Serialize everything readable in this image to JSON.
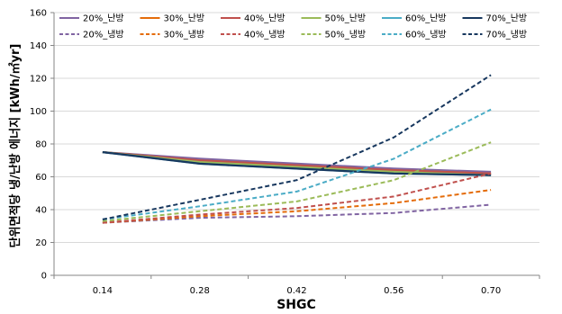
{
  "chart_data": {
    "type": "line",
    "xlabel": "SHGC",
    "ylabel": "단위면적당 냉/난방 에너지 [kWh/㎡yr]",
    "x": [
      "0.14",
      "0.28",
      "0.42",
      "0.56",
      "0.70"
    ],
    "ylim": [
      0,
      160
    ],
    "yticks": [
      0,
      20,
      40,
      60,
      80,
      100,
      120,
      140,
      160
    ],
    "grid": "horizontal",
    "legend_position": "top",
    "series": [
      {
        "name": "20%_난방",
        "color": "#8064a2",
        "dash": "solid",
        "values": [
          75,
          71,
          68,
          65,
          63
        ]
      },
      {
        "name": "30%_난방",
        "color": "#e46c0a",
        "dash": "solid",
        "values": [
          75,
          70,
          67,
          64,
          62
        ]
      },
      {
        "name": "40%_난방",
        "color": "#c0504d",
        "dash": "solid",
        "values": [
          75,
          70,
          67,
          64,
          62
        ]
      },
      {
        "name": "50%_난방",
        "color": "#9bbb59",
        "dash": "solid",
        "values": [
          75,
          69,
          66,
          63,
          61
        ]
      },
      {
        "name": "60%_난방",
        "color": "#4bacc6",
        "dash": "solid",
        "values": [
          75,
          68,
          65,
          62,
          61
        ]
      },
      {
        "name": "70%_난방",
        "color": "#17375e",
        "dash": "solid",
        "values": [
          75,
          68,
          65,
          62,
          61
        ]
      },
      {
        "name": "20%_냉방",
        "color": "#8064a2",
        "dash": "dashed",
        "values": [
          32,
          35,
          36,
          38,
          43
        ]
      },
      {
        "name": "30%_냉방",
        "color": "#e46c0a",
        "dash": "dashed",
        "values": [
          32,
          36,
          39,
          44,
          52
        ]
      },
      {
        "name": "40%_냉방",
        "color": "#c0504d",
        "dash": "dashed",
        "values": [
          32,
          37,
          41,
          48,
          62
        ]
      },
      {
        "name": "50%_냉방",
        "color": "#9bbb59",
        "dash": "dashed",
        "values": [
          33,
          39,
          45,
          58,
          81
        ]
      },
      {
        "name": "60%_냉방",
        "color": "#4bacc6",
        "dash": "dashed",
        "values": [
          34,
          42,
          51,
          71,
          101
        ]
      },
      {
        "name": "70%_냉방",
        "color": "#17375e",
        "dash": "dashed",
        "values": [
          34,
          46,
          58,
          84,
          122
        ]
      }
    ]
  }
}
